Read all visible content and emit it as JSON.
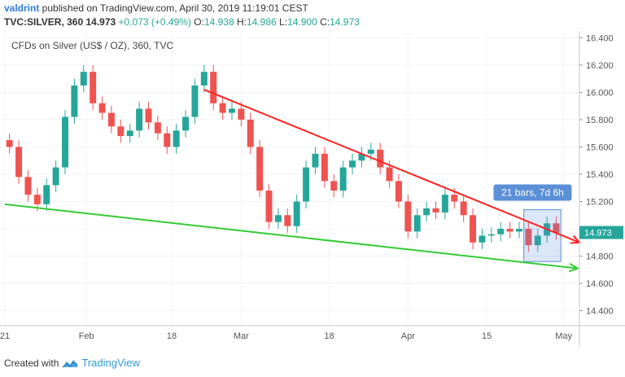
{
  "header": {
    "author": "valdrint",
    "published_text": " published on TradingView.com, April 30, 2019 11:19:01 CEST",
    "symbol": "TVC:SILVER, 360",
    "last": "14.973",
    "change": "+0.073 (+0.49%)",
    "o_label": "O:",
    "o_value": "14.938",
    "h_label": "H:",
    "h_value": "14.986",
    "l_label": "L:",
    "l_value": "14.900",
    "c_label": "C:",
    "c_value": "14.973"
  },
  "chart_data": {
    "type": "candlestick",
    "title": "CFDs on Silver (US$ / OZ), 360, TVC",
    "y_ticks": [
      "16.400",
      "16.200",
      "16.000",
      "15.800",
      "15.600",
      "15.400",
      "15.200",
      "15.000",
      "14.800",
      "14.600",
      "14.400"
    ],
    "y_tick_values": [
      16.4,
      16.2,
      16.0,
      15.8,
      15.6,
      15.4,
      15.2,
      15.0,
      14.8,
      14.6,
      14.4
    ],
    "ylim": [
      14.29,
      16.45
    ],
    "x_ticks": [
      "21",
      "Feb",
      "18",
      "Mar",
      "18",
      "Apr",
      "15",
      "May"
    ],
    "last_price": "14.973",
    "colors": {
      "up": "#26a69a",
      "down": "#ef5350",
      "resistance": "#ff2222",
      "support": "#33cc33",
      "measure": "#5b8fd6"
    },
    "closes": [
      15.6,
      15.38,
      15.25,
      15.18,
      15.32,
      15.45,
      15.82,
      16.05,
      16.15,
      15.92,
      15.85,
      15.75,
      15.68,
      15.72,
      15.88,
      15.78,
      15.7,
      15.6,
      15.72,
      15.82,
      16.05,
      16.15,
      15.92,
      15.85,
      15.88,
      15.8,
      15.6,
      15.28,
      15.05,
      15.1,
      15.02,
      15.2,
      15.45,
      15.55,
      15.35,
      15.28,
      15.45,
      15.5,
      15.55,
      15.58,
      15.45,
      15.35,
      15.2,
      14.98,
      15.1,
      15.15,
      15.12,
      15.25,
      15.2,
      15.1,
      14.9,
      14.95,
      14.96,
      15.0,
      14.98,
      15.0,
      14.88,
      14.95,
      15.04,
      14.97
    ],
    "trend_lines": [
      {
        "name": "descending-resistance",
        "from": {
          "bar": 21,
          "price": 16.02
        },
        "to": {
          "bar": 61.5,
          "price": 14.9
        }
      },
      {
        "name": "ascending-support",
        "from": {
          "bar": -0.5,
          "price": 15.18
        },
        "to": {
          "bar": 61.3,
          "price": 14.71
        }
      }
    ],
    "measure_box": {
      "label": "21 bars, 7d 6h",
      "from_bar": 55.5,
      "to_bar": 59.5,
      "high": 15.14,
      "low": 14.76
    }
  },
  "footer": {
    "created_with": "Created with",
    "brand": "TradingView"
  }
}
